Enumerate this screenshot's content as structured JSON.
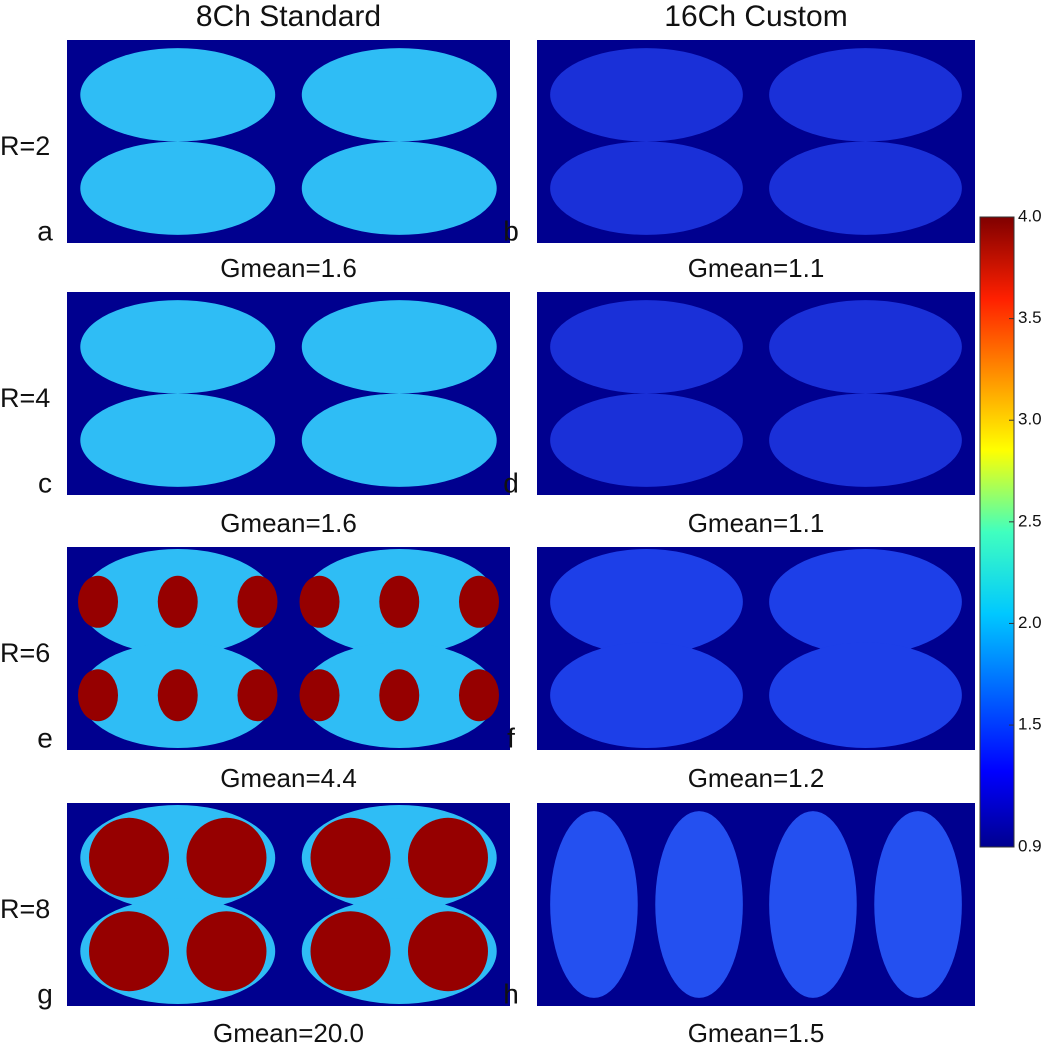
{
  "columns": [
    "8Ch Standard",
    "16Ch Custom"
  ],
  "rows": [
    "R=2",
    "R=4",
    "R=6",
    "R=8"
  ],
  "panels": [
    {
      "letter": "a",
      "gmean": "Gmean=1.6"
    },
    {
      "letter": "b",
      "gmean": "Gmean=1.1"
    },
    {
      "letter": "c",
      "gmean": "Gmean=1.6"
    },
    {
      "letter": "d",
      "gmean": "Gmean=1.1"
    },
    {
      "letter": "e",
      "gmean": "Gmean=4.4"
    },
    {
      "letter": "f",
      "gmean": "Gmean=1.2"
    },
    {
      "letter": "g",
      "gmean": "Gmean=20.0"
    },
    {
      "letter": "h",
      "gmean": "Gmean=1.5"
    }
  ],
  "colorbar": {
    "lim": [
      0.9,
      4
    ],
    "ticks": [
      0.9,
      1.5,
      {
        "value": 2,
        "label": "2.0"
      },
      2.5,
      {
        "value": 3,
        "label": "3.0"
      },
      3.5,
      {
        "value": 4,
        "label": "4.0"
      }
    ]
  }
}
